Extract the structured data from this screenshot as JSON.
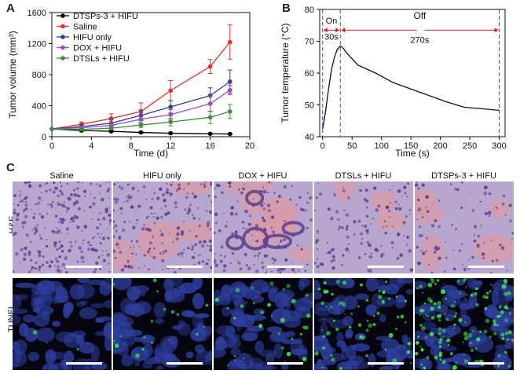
{
  "panels": {
    "a": "A",
    "b": "B",
    "c": "C"
  },
  "chart_data": [
    {
      "type": "line",
      "panel": "A",
      "xlabel": "Time (d)",
      "ylabel": "Tumor volume (mm³)",
      "xlim": [
        0,
        20
      ],
      "ylim": [
        0,
        1600
      ],
      "xticks": [
        0,
        4,
        8,
        12,
        16,
        20
      ],
      "yticks": [
        0,
        400,
        800,
        1200,
        1600
      ],
      "legend": "top-left",
      "x": [
        0,
        3,
        6,
        9,
        12,
        16,
        18
      ],
      "series": [
        {
          "name": "DTSPs-3 + HIFU",
          "color": "#000000",
          "values": [
            100,
            80,
            70,
            55,
            45,
            38,
            35
          ],
          "err": [
            0,
            10,
            10,
            8,
            8,
            6,
            6
          ]
        },
        {
          "name": "Saline",
          "color": "#e8302a",
          "values": [
            100,
            160,
            235,
            325,
            595,
            905,
            1220
          ],
          "err": [
            0,
            30,
            60,
            110,
            130,
            90,
            220
          ]
        },
        {
          "name": "HIFU only",
          "color": "#2e3f9c",
          "values": [
            100,
            130,
            175,
            275,
            385,
            530,
            710
          ],
          "err": [
            0,
            25,
            40,
            70,
            80,
            100,
            150
          ]
        },
        {
          "name": "DOX + HIFU",
          "color": "#a04bc0",
          "values": [
            100,
            115,
            145,
            225,
            285,
            425,
            600
          ],
          "err": [
            0,
            20,
            35,
            55,
            65,
            100,
            60
          ]
        },
        {
          "name": "DTSLs + HIFU",
          "color": "#3f8f3a",
          "values": [
            100,
            95,
            110,
            150,
            190,
            250,
            325
          ],
          "err": [
            0,
            15,
            20,
            30,
            50,
            80,
            90
          ]
        }
      ]
    },
    {
      "type": "line",
      "panel": "B",
      "xlabel": "Time (s)",
      "ylabel": "Tumor temperature (°C)",
      "xlim": [
        -5,
        310
      ],
      "ylim": [
        40,
        80
      ],
      "xticks": [
        0,
        50,
        100,
        150,
        200,
        250,
        300
      ],
      "yticks": [
        40,
        50,
        60,
        70,
        80
      ],
      "x": [
        0,
        5,
        10,
        15,
        20,
        25,
        30,
        35,
        40,
        60,
        90,
        120,
        150,
        180,
        210,
        240,
        270,
        300
      ],
      "series": [
        {
          "name": "",
          "color": "#111111",
          "values": [
            42.5,
            48.0,
            55.0,
            61.0,
            65.0,
            67.5,
            68.5,
            67.8,
            66.5,
            62.5,
            60.0,
            57.0,
            55.0,
            53.0,
            51.0,
            49.3,
            48.8,
            48.3
          ]
        }
      ],
      "vlines": [
        0,
        30,
        300
      ],
      "annotations": {
        "on_label": "On",
        "on_duration": "30s",
        "off_label": "Off",
        "off_duration": "270s"
      }
    }
  ],
  "grid": {
    "columns": [
      "Saline",
      "HIFU only",
      "DOX + HIFU",
      "DTSLs + HIFU",
      "DTSPs-3 + HIFU"
    ],
    "rows": [
      "H&E",
      "TUNEL"
    ],
    "tunel_green_intensity": [
      0.02,
      0.12,
      0.2,
      0.4,
      0.85
    ]
  },
  "colors": {
    "he_base": "#b9a6cf",
    "he_nuclei": "#5d3f8c",
    "he_pink": "#d99aa5",
    "tunel_blue": "#2f3fa0",
    "tunel_green": "#3fe04a"
  }
}
